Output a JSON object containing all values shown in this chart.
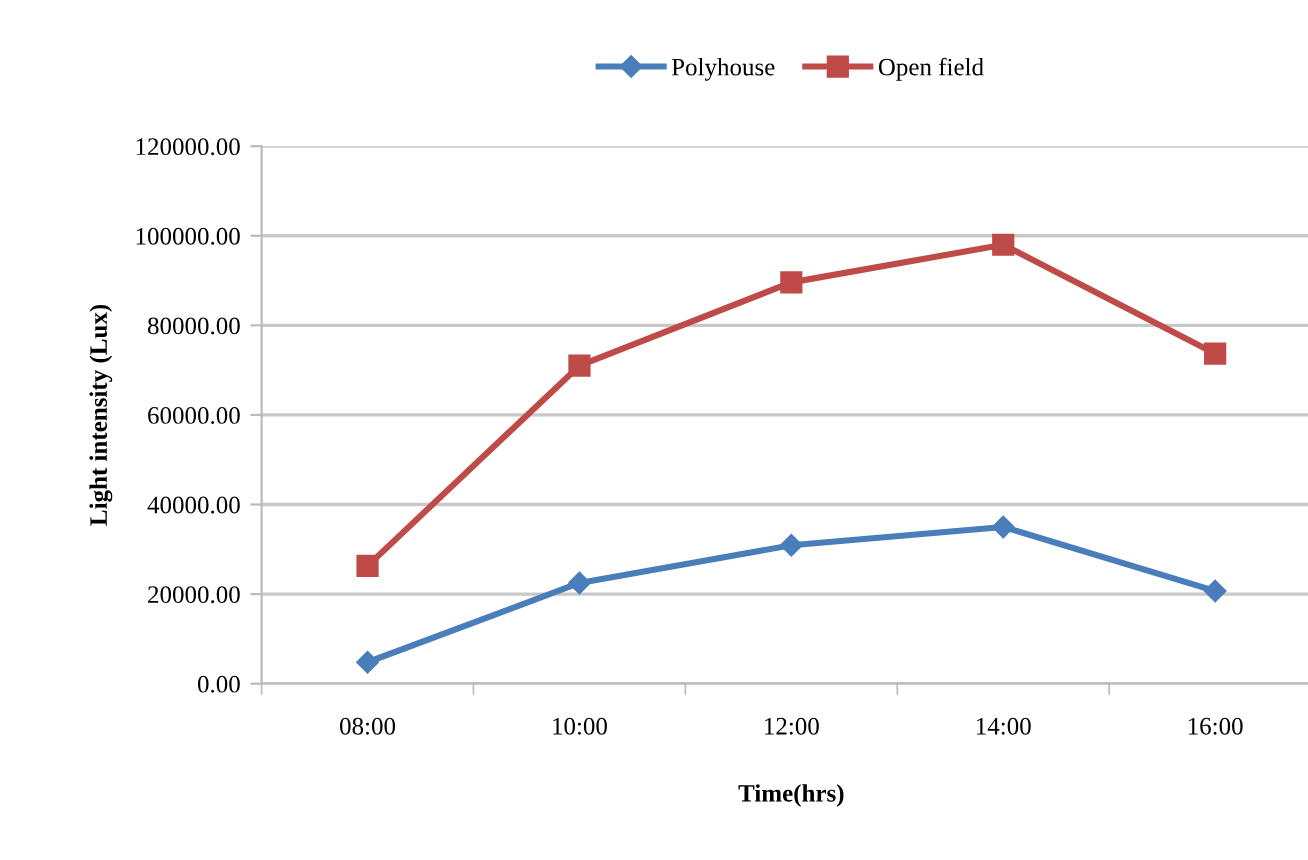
{
  "chart_data": {
    "type": "line",
    "xlabel": "Time(hrs)",
    "ylabel": "Light intensity (Lux)",
    "categories": [
      "08:00",
      "10:00",
      "12:00",
      "14:00",
      "16:00"
    ],
    "series": [
      {
        "name": "Polyhouse",
        "color": "#4a7ebb",
        "marker": "diamond",
        "values": [
          4800,
          22500,
          30900,
          35000,
          20700
        ]
      },
      {
        "name": "Open field",
        "color": "#be4b48",
        "marker": "square",
        "values": [
          26300,
          71000,
          89600,
          98000,
          73700
        ]
      }
    ],
    "ylim": [
      0,
      120000
    ],
    "yticks": [
      {
        "value": 0,
        "label": "0.00"
      },
      {
        "value": 20000,
        "label": "20000.00"
      },
      {
        "value": 40000,
        "label": "40000.00"
      },
      {
        "value": 60000,
        "label": "60000.00"
      },
      {
        "value": 80000,
        "label": "80000.00"
      },
      {
        "value": 100000,
        "label": "100000.00"
      },
      {
        "value": 120000,
        "label": "120000.00"
      }
    ],
    "grid": "y",
    "legend": "top",
    "line_style": "solid"
  }
}
